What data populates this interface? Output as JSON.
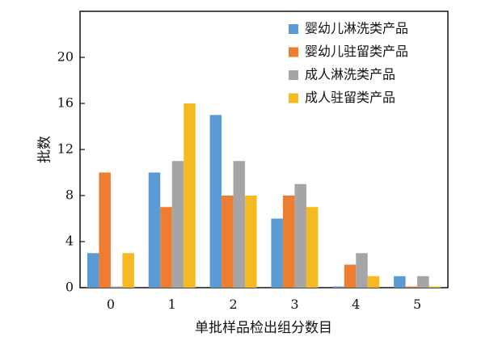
{
  "chart_data": {
    "type": "bar",
    "categories": [
      "0",
      "1",
      "2",
      "3",
      "4",
      "5"
    ],
    "series": [
      {
        "name": "婴幼儿淋洗类产品",
        "color": "#5b9bd5",
        "values": [
          3,
          10,
          15,
          6,
          0.1,
          1
        ]
      },
      {
        "name": "婴幼儿驻留类产品",
        "color": "#ed7d31",
        "values": [
          10,
          7,
          8,
          8,
          2,
          0.1
        ]
      },
      {
        "name": "成人淋洗类产品",
        "color": "#a5a5a5",
        "values": [
          0.1,
          11,
          11,
          9,
          3,
          1
        ]
      },
      {
        "name": "成人驻留类产品",
        "color": "#f5b922",
        "values": [
          3,
          16,
          8,
          7,
          1,
          0.1
        ]
      }
    ],
    "xlabel": "单批样品检出组分数目",
    "ylabel": "批数",
    "ylim": [
      0,
      24
    ],
    "yticks": [
      0,
      4,
      8,
      12,
      16,
      20
    ],
    "legend_position": "top-right",
    "grid": false
  }
}
